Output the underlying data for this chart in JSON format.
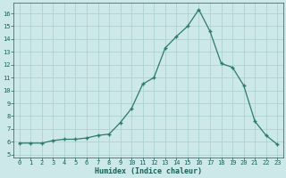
{
  "x": [
    0,
    1,
    2,
    3,
    4,
    5,
    6,
    7,
    8,
    9,
    10,
    11,
    12,
    13,
    14,
    15,
    16,
    17,
    18,
    19,
    20,
    21,
    22,
    23
  ],
  "y": [
    5.9,
    5.9,
    5.9,
    6.1,
    6.2,
    6.2,
    6.3,
    6.5,
    6.6,
    7.5,
    8.6,
    10.5,
    11.0,
    13.3,
    14.2,
    15.0,
    16.3,
    14.6,
    12.1,
    11.8,
    10.4,
    7.6,
    6.5,
    5.8
  ],
  "xlabel": "Humidex (Indice chaleur)",
  "line_color": "#2d7a6e",
  "bg_color": "#cce8e8",
  "grid_color": "#aacece",
  "text_color": "#1a5f5a",
  "ylim": [
    4.8,
    16.8
  ],
  "xlim": [
    -0.5,
    23.5
  ],
  "yticks": [
    5,
    6,
    7,
    8,
    9,
    10,
    11,
    12,
    13,
    14,
    15,
    16
  ],
  "xticks": [
    0,
    1,
    2,
    3,
    4,
    5,
    6,
    7,
    8,
    9,
    10,
    11,
    12,
    13,
    14,
    15,
    16,
    17,
    18,
    19,
    20,
    21,
    22,
    23
  ]
}
